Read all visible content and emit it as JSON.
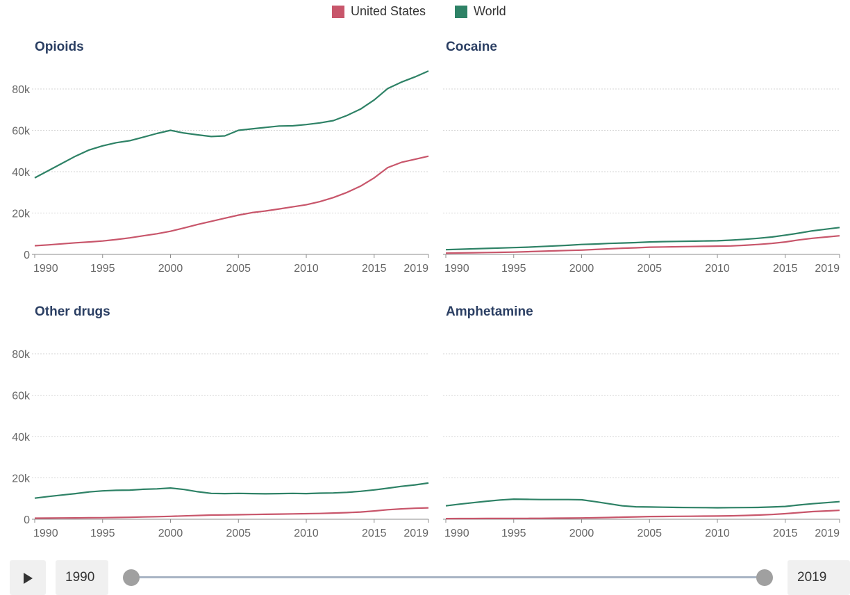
{
  "legend": [
    {
      "label": "United States",
      "color": "#c8566b"
    },
    {
      "label": "World",
      "color": "#2e8266"
    }
  ],
  "timeline": {
    "start_year": "1990",
    "end_year": "2019",
    "play_icon": "play-icon"
  },
  "chart_data": [
    {
      "type": "line",
      "title": "Opioids",
      "xlim": [
        1990,
        2019
      ],
      "ylim": [
        0,
        90000
      ],
      "yticks": [
        0,
        20000,
        40000,
        60000,
        80000
      ],
      "ytick_labels": [
        "0",
        "20k",
        "40k",
        "60k",
        "80k"
      ],
      "xticks": [
        1990,
        1995,
        2000,
        2005,
        2010,
        2015,
        2019
      ],
      "xtick_labels": [
        "1990",
        "1995",
        "2000",
        "2005",
        "2010",
        "2015",
        "2019"
      ],
      "grid": true,
      "x": [
        1990,
        1991,
        1992,
        1993,
        1994,
        1995,
        1996,
        1997,
        1998,
        1999,
        2000,
        2001,
        2002,
        2003,
        2004,
        2005,
        2006,
        2007,
        2008,
        2009,
        2010,
        2011,
        2012,
        2013,
        2014,
        2015,
        2016,
        2017,
        2018,
        2019
      ],
      "series": [
        {
          "name": "United States",
          "color": "#c8566b",
          "values": [
            4200,
            4600,
            5100,
            5600,
            6000,
            6500,
            7200,
            8000,
            9000,
            10000,
            11200,
            12800,
            14500,
            16000,
            17500,
            19000,
            20200,
            21000,
            22000,
            23000,
            24000,
            25500,
            27500,
            30000,
            33000,
            37000,
            42000,
            44500,
            46000,
            47500
          ]
        },
        {
          "name": "World",
          "color": "#2e8266",
          "values": [
            37000,
            40500,
            44000,
            47500,
            50500,
            52500,
            54000,
            55000,
            56700,
            58500,
            60000,
            58700,
            57800,
            57000,
            57300,
            60000,
            60700,
            61400,
            62100,
            62200,
            62800,
            63600,
            64700,
            67200,
            70300,
            74700,
            80200,
            83300,
            85800,
            88700
          ]
        }
      ]
    },
    {
      "type": "line",
      "title": "Cocaine",
      "xlim": [
        1990,
        2019
      ],
      "ylim": [
        0,
        90000
      ],
      "yticks": [
        0,
        20000,
        40000,
        60000,
        80000
      ],
      "ytick_labels": [
        "0",
        "20k",
        "40k",
        "60k",
        "80k"
      ],
      "xticks": [
        1990,
        1995,
        2000,
        2005,
        2010,
        2015,
        2019
      ],
      "xtick_labels": [
        "1990",
        "1995",
        "2000",
        "2005",
        "2010",
        "2015",
        "2019"
      ],
      "grid": true,
      "x": [
        1990,
        1991,
        1992,
        1993,
        1994,
        1995,
        1996,
        1997,
        1998,
        1999,
        2000,
        2001,
        2002,
        2003,
        2004,
        2005,
        2006,
        2007,
        2008,
        2009,
        2010,
        2011,
        2012,
        2013,
        2014,
        2015,
        2016,
        2017,
        2018,
        2019
      ],
      "series": [
        {
          "name": "United States",
          "color": "#c8566b",
          "values": [
            600,
            700,
            800,
            900,
            1000,
            1100,
            1300,
            1500,
            1700,
            1900,
            2100,
            2400,
            2700,
            3000,
            3200,
            3500,
            3600,
            3700,
            3800,
            3900,
            4000,
            4100,
            4400,
            4800,
            5300,
            6000,
            7000,
            7800,
            8400,
            9000
          ]
        },
        {
          "name": "World",
          "color": "#2e8266",
          "values": [
            2300,
            2500,
            2700,
            2900,
            3100,
            3300,
            3500,
            3800,
            4100,
            4400,
            4800,
            5000,
            5300,
            5500,
            5700,
            6000,
            6200,
            6300,
            6400,
            6500,
            6600,
            6900,
            7300,
            7800,
            8400,
            9300,
            10300,
            11400,
            12200,
            13000
          ]
        }
      ]
    },
    {
      "type": "line",
      "title": "Other drugs",
      "xlim": [
        1990,
        2019
      ],
      "ylim": [
        0,
        90000
      ],
      "yticks": [
        0,
        20000,
        40000,
        60000,
        80000
      ],
      "ytick_labels": [
        "0",
        "20k",
        "40k",
        "60k",
        "80k"
      ],
      "xticks": [
        1990,
        1995,
        2000,
        2005,
        2010,
        2015,
        2019
      ],
      "xtick_labels": [
        "1990",
        "1995",
        "2000",
        "2005",
        "2010",
        "2015",
        "2019"
      ],
      "grid": true,
      "x": [
        1990,
        1991,
        1992,
        1993,
        1994,
        1995,
        1996,
        1997,
        1998,
        1999,
        2000,
        2001,
        2002,
        2003,
        2004,
        2005,
        2006,
        2007,
        2008,
        2009,
        2010,
        2011,
        2012,
        2013,
        2014,
        2015,
        2016,
        2017,
        2018,
        2019
      ],
      "series": [
        {
          "name": "United States",
          "color": "#c8566b",
          "values": [
            500,
            550,
            600,
            650,
            700,
            750,
            850,
            950,
            1100,
            1250,
            1400,
            1600,
            1800,
            2000,
            2100,
            2200,
            2300,
            2400,
            2500,
            2600,
            2700,
            2800,
            3000,
            3200,
            3500,
            4000,
            4600,
            5000,
            5300,
            5500
          ]
        },
        {
          "name": "World",
          "color": "#2e8266",
          "values": [
            10200,
            11000,
            11700,
            12400,
            13200,
            13700,
            14000,
            14100,
            14500,
            14700,
            15100,
            14400,
            13300,
            12500,
            12400,
            12500,
            12400,
            12300,
            12400,
            12500,
            12400,
            12600,
            12700,
            13000,
            13500,
            14200,
            15000,
            15900,
            16600,
            17500
          ]
        }
      ]
    },
    {
      "type": "line",
      "title": "Amphetamine",
      "xlim": [
        1990,
        2019
      ],
      "ylim": [
        0,
        90000
      ],
      "yticks": [
        0,
        20000,
        40000,
        60000,
        80000
      ],
      "ytick_labels": [
        "0",
        "20k",
        "40k",
        "60k",
        "80k"
      ],
      "xticks": [
        1990,
        1995,
        2000,
        2005,
        2010,
        2015,
        2019
      ],
      "xtick_labels": [
        "1990",
        "1995",
        "2000",
        "2005",
        "2010",
        "2015",
        "2019"
      ],
      "grid": true,
      "x": [
        1990,
        1991,
        1992,
        1993,
        1994,
        1995,
        1996,
        1997,
        1998,
        1999,
        2000,
        2001,
        2002,
        2003,
        2004,
        2005,
        2006,
        2007,
        2008,
        2009,
        2010,
        2011,
        2012,
        2013,
        2014,
        2015,
        2016,
        2017,
        2018,
        2019
      ],
      "series": [
        {
          "name": "United States",
          "color": "#c8566b",
          "values": [
            300,
            320,
            340,
            360,
            380,
            400,
            420,
            450,
            500,
            550,
            600,
            700,
            850,
            1000,
            1150,
            1300,
            1350,
            1400,
            1450,
            1500,
            1550,
            1650,
            1800,
            2000,
            2300,
            2700,
            3200,
            3700,
            4000,
            4300
          ]
        },
        {
          "name": "World",
          "color": "#2e8266",
          "values": [
            6500,
            7300,
            8000,
            8700,
            9300,
            9700,
            9600,
            9500,
            9500,
            9500,
            9400,
            8500,
            7500,
            6500,
            6000,
            5900,
            5800,
            5700,
            5650,
            5600,
            5550,
            5600,
            5650,
            5700,
            5900,
            6200,
            6900,
            7500,
            8000,
            8500
          ]
        }
      ]
    }
  ]
}
